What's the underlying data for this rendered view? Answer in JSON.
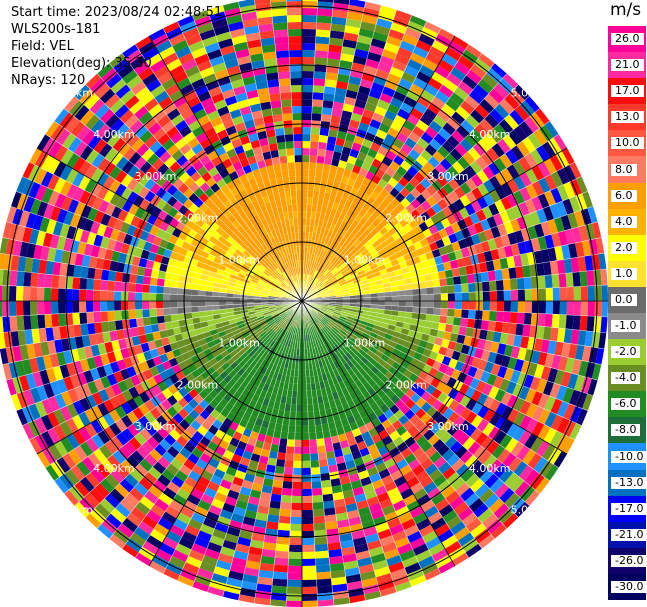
{
  "header": {
    "start_time": "Start time: 2023/08/24 02:48:51",
    "instrument": "WLS200s-181",
    "field": "Field: VEL",
    "elevation": "Elevation(deg): 35.30",
    "nrays": "NRays: 120"
  },
  "colorbar": {
    "unit": "m/s",
    "levels": [
      "26.0",
      "21.0",
      "17.0",
      "13.0",
      "10.0",
      "8.0",
      "6.0",
      "4.0",
      "2.0",
      "1.0",
      "0.0",
      "-1.0",
      "-2.0",
      "-4.0",
      "-6.0",
      "-8.0",
      "-10.0",
      "-13.0",
      "-17.0",
      "-21.0",
      "-26.0",
      "-30.0"
    ],
    "colors": [
      "#ff0099",
      "#ff2aa0",
      "#ff0c0c",
      "#ff3a2a",
      "#ff5740",
      "#ff7a63",
      "#ff9e00",
      "#ffb200",
      "#ffff00",
      "#ffe22e",
      "#6b6b6b",
      "#8a8a8a",
      "#9acd32",
      "#6b8e23",
      "#228b22",
      "#1e6e3a",
      "#1e90ff",
      "#0070c0",
      "#0000ff",
      "#0010aa",
      "#10006b",
      "#000060"
    ]
  },
  "range_rings": {
    "labels": [
      "1.00km",
      "2.00km",
      "3.00km",
      "4.00km",
      "5.00km"
    ]
  }
}
